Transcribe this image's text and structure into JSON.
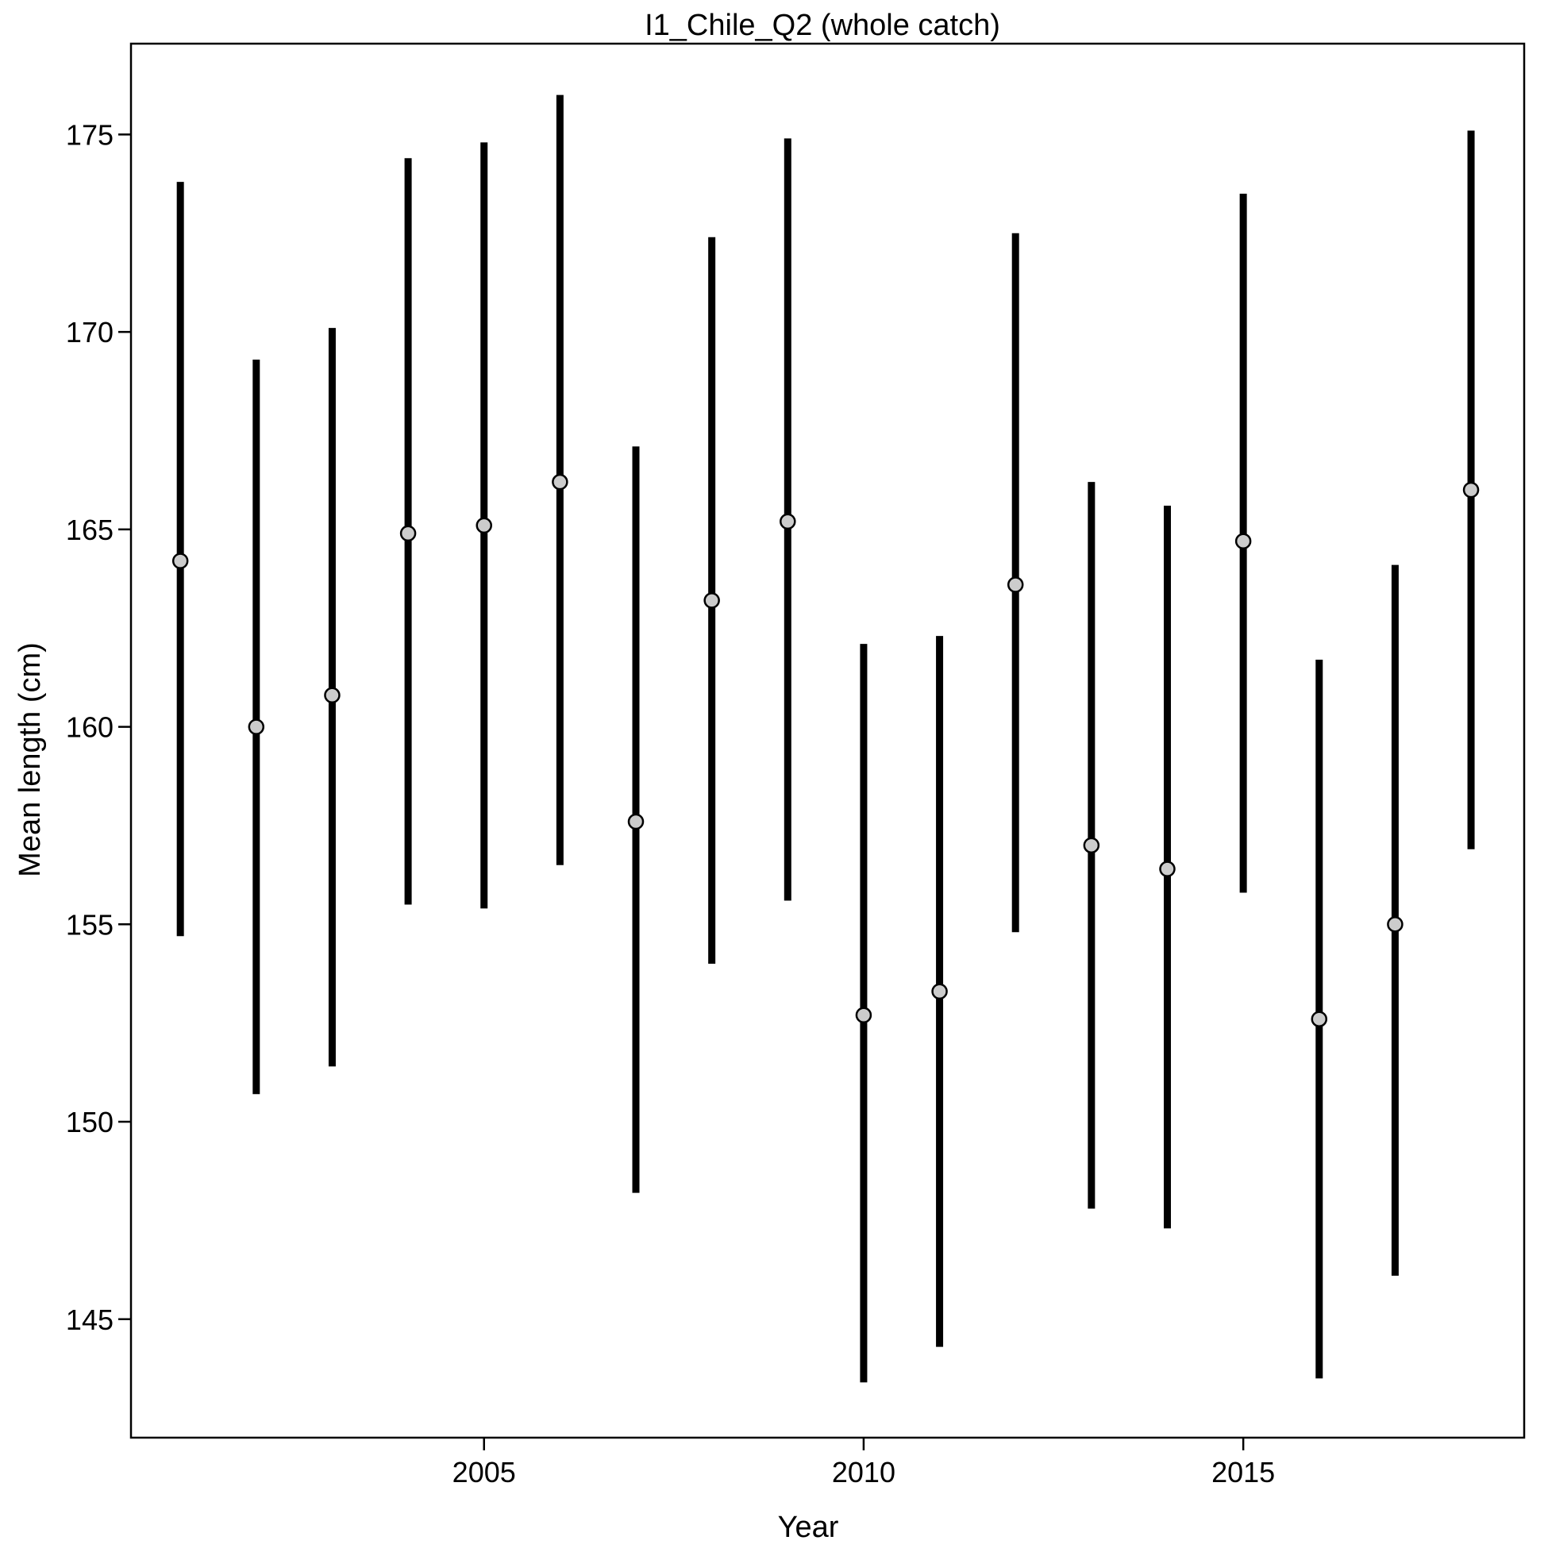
{
  "chart_data": {
    "type": "scatter",
    "title": "I1_Chile_Q2 (whole catch)",
    "xlabel": "Year",
    "ylabel": "Mean length (cm)",
    "xlim": [
      2000.35,
      2018.7
    ],
    "ylim": [
      142.0,
      177.3
    ],
    "xticks": [
      2005,
      2010,
      2015
    ],
    "yticks": [
      145,
      150,
      155,
      160,
      165,
      170,
      175
    ],
    "grid": false,
    "legend": "none",
    "colors": {
      "interval": "#000000",
      "point_fill": "#cccccc",
      "point_stroke": "#000000"
    },
    "series": [
      {
        "x": [
          2001,
          2002,
          2003,
          2004,
          2005,
          2006,
          2007,
          2008,
          2009,
          2010,
          2011,
          2012,
          2013,
          2014,
          2015,
          2016,
          2017,
          2018
        ],
        "y": [
          164.2,
          160.0,
          160.8,
          164.9,
          165.1,
          166.2,
          157.6,
          163.2,
          165.2,
          152.7,
          153.3,
          163.6,
          157.0,
          156.4,
          164.7,
          152.6,
          155.0,
          166.0
        ],
        "lower": [
          154.7,
          150.7,
          151.4,
          155.5,
          155.4,
          156.5,
          148.2,
          154.0,
          155.6,
          143.4,
          144.3,
          154.8,
          147.8,
          147.3,
          155.8,
          143.5,
          146.1,
          156.9
        ],
        "upper": [
          173.8,
          169.3,
          170.1,
          174.4,
          174.8,
          176.0,
          167.1,
          172.4,
          174.9,
          162.1,
          162.3,
          172.5,
          166.2,
          165.6,
          173.5,
          161.7,
          164.1,
          175.1
        ]
      }
    ]
  }
}
